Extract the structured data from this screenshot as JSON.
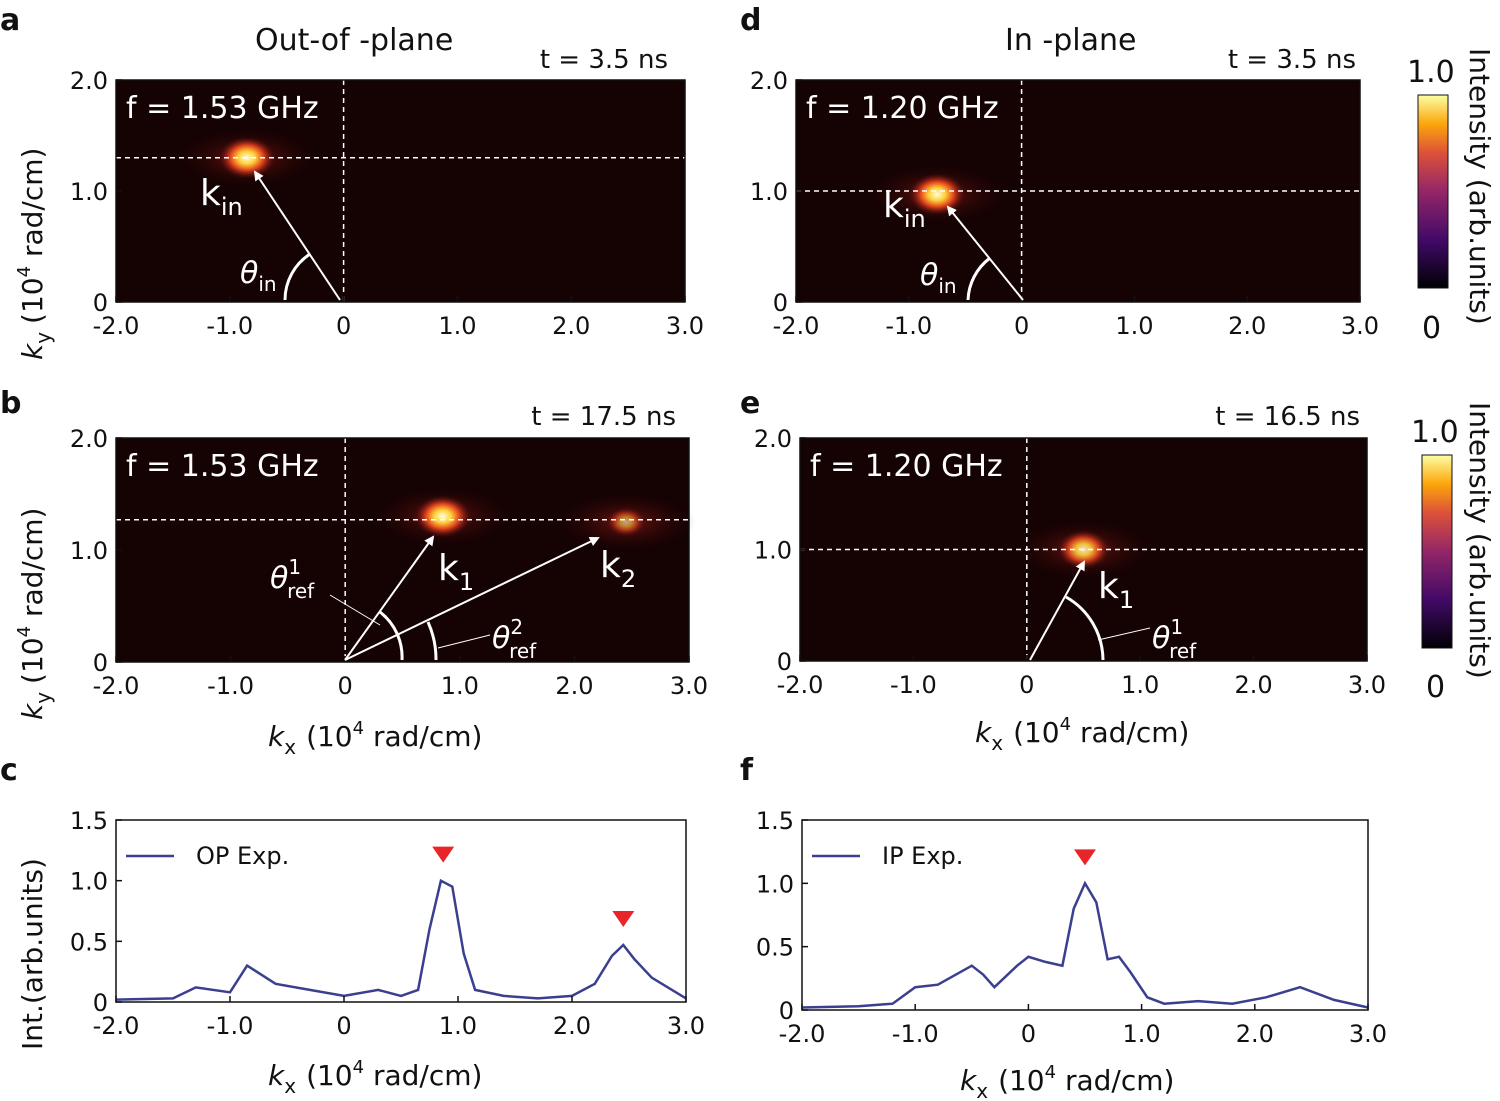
{
  "panel_labels": [
    "a",
    "b",
    "c",
    "d",
    "e",
    "f"
  ],
  "headers": {
    "left": "Out-of -plane",
    "right": "In -plane"
  },
  "colorbar": {
    "max": "1.0",
    "min": "0",
    "label": "Intensity (arb.units)",
    "colormap": "inferno"
  },
  "labels": {
    "ky": "k",
    "ky_sub": "y",
    "ky_unit": "(10",
    "ky_exp": "4",
    "ky_rest": " rad/cm)",
    "kx": "k",
    "kx_sub": "x",
    "kx_unit": "(10",
    "kx_exp": "4",
    "kx_rest": " rad/cm)",
    "int": "Int.(arb.units)",
    "k": "k",
    "in": "in",
    "one": "1",
    "two": "2",
    "theta": "θ",
    "ref": "ref",
    "sup1": "1",
    "sup2": "2"
  },
  "chart_data": [
    {
      "panel": "a",
      "type": "heatmap",
      "time": "t = 3.5 ns",
      "freq": "f = 1.53 GHz",
      "xlim": [
        -2.0,
        3.0
      ],
      "ylim": [
        0,
        2.0
      ],
      "xticks": [
        "-2.0",
        "-1.0",
        "0",
        "1.0",
        "2.0",
        "3.0"
      ],
      "yticks": [
        "0",
        "1.0",
        "2.0"
      ],
      "hotspots": [
        {
          "kx": -0.85,
          "ky": 1.3,
          "intensity": 1.0
        }
      ],
      "guide_ky": 1.3
    },
    {
      "panel": "b",
      "type": "heatmap",
      "time": "t = 17.5 ns",
      "freq": "f = 1.53 GHz",
      "xlim": [
        -2.0,
        3.0
      ],
      "ylim": [
        0,
        2.0
      ],
      "xticks": [
        "-2.0",
        "-1.0",
        "0",
        "1.0",
        "2.0",
        "3.0"
      ],
      "yticks": [
        "0",
        "1.0",
        "2.0"
      ],
      "hotspots": [
        {
          "kx": 0.85,
          "ky": 1.3,
          "intensity": 1.0
        },
        {
          "kx": 2.45,
          "ky": 1.25,
          "intensity": 0.6
        }
      ],
      "guide_ky": 1.27
    },
    {
      "panel": "c",
      "type": "line",
      "xlim": [
        -2.0,
        3.0
      ],
      "ylim": [
        0,
        1.5
      ],
      "xticks": [
        "-2.0",
        "-1.0",
        "0",
        "1.0",
        "2.0",
        "3.0"
      ],
      "yticks": [
        "0",
        "0.5",
        "1.0",
        "1.5"
      ],
      "series": [
        {
          "name": "OP Exp.",
          "x": [
            -2.0,
            -1.5,
            -1.3,
            -1.0,
            -0.85,
            -0.6,
            -0.3,
            0.0,
            0.3,
            0.5,
            0.65,
            0.75,
            0.85,
            0.95,
            1.05,
            1.15,
            1.4,
            1.7,
            2.0,
            2.2,
            2.35,
            2.45,
            2.55,
            2.7,
            3.0
          ],
          "y": [
            0.02,
            0.03,
            0.12,
            0.08,
            0.3,
            0.15,
            0.1,
            0.05,
            0.1,
            0.05,
            0.1,
            0.6,
            1.0,
            0.95,
            0.4,
            0.1,
            0.05,
            0.03,
            0.05,
            0.15,
            0.38,
            0.47,
            0.35,
            0.2,
            0.03
          ]
        }
      ],
      "markers": [
        0.87,
        2.45
      ]
    },
    {
      "panel": "d",
      "type": "heatmap",
      "time": "t = 3.5 ns",
      "freq": "f = 1.20 GHz",
      "xlim": [
        -2.0,
        3.0
      ],
      "ylim": [
        0,
        2.0
      ],
      "xticks": [
        "-2.0",
        "-1.0",
        "0",
        "1.0",
        "2.0",
        "3.0"
      ],
      "yticks": [
        "0",
        "1.0",
        "2.0"
      ],
      "hotspots": [
        {
          "kx": -0.75,
          "ky": 0.97,
          "intensity": 1.0
        }
      ],
      "guide_ky": 1.0
    },
    {
      "panel": "e",
      "type": "heatmap",
      "time": "t = 16.5 ns",
      "freq": "f = 1.20 GHz",
      "xlim": [
        -2.0,
        3.0
      ],
      "ylim": [
        0,
        2.0
      ],
      "xticks": [
        "-2.0",
        "-1.0",
        "0",
        "1.0",
        "2.0",
        "3.0"
      ],
      "yticks": [
        "0",
        "1.0",
        "2.0"
      ],
      "hotspots": [
        {
          "kx": 0.5,
          "ky": 1.0,
          "intensity": 0.9
        }
      ],
      "guide_ky": 1.0
    },
    {
      "panel": "f",
      "type": "line",
      "xlim": [
        -2.0,
        3.0
      ],
      "ylim": [
        0,
        1.5
      ],
      "xticks": [
        "-2.0",
        "-1.0",
        "0",
        "1.0",
        "2.0",
        "3.0"
      ],
      "yticks": [
        "0",
        "0.5",
        "1.0",
        "1.5"
      ],
      "series": [
        {
          "name": "IP Exp.",
          "x": [
            -2.0,
            -1.5,
            -1.2,
            -1.0,
            -0.8,
            -0.5,
            -0.4,
            -0.3,
            -0.1,
            0.0,
            0.15,
            0.3,
            0.4,
            0.5,
            0.6,
            0.7,
            0.8,
            0.9,
            1.05,
            1.2,
            1.5,
            1.8,
            2.1,
            2.4,
            2.7,
            3.0
          ],
          "y": [
            0.02,
            0.03,
            0.05,
            0.18,
            0.2,
            0.35,
            0.28,
            0.18,
            0.35,
            0.42,
            0.38,
            0.35,
            0.8,
            1.0,
            0.85,
            0.4,
            0.42,
            0.3,
            0.1,
            0.05,
            0.07,
            0.05,
            0.1,
            0.18,
            0.08,
            0.02
          ]
        }
      ],
      "markers": [
        0.5
      ]
    }
  ]
}
